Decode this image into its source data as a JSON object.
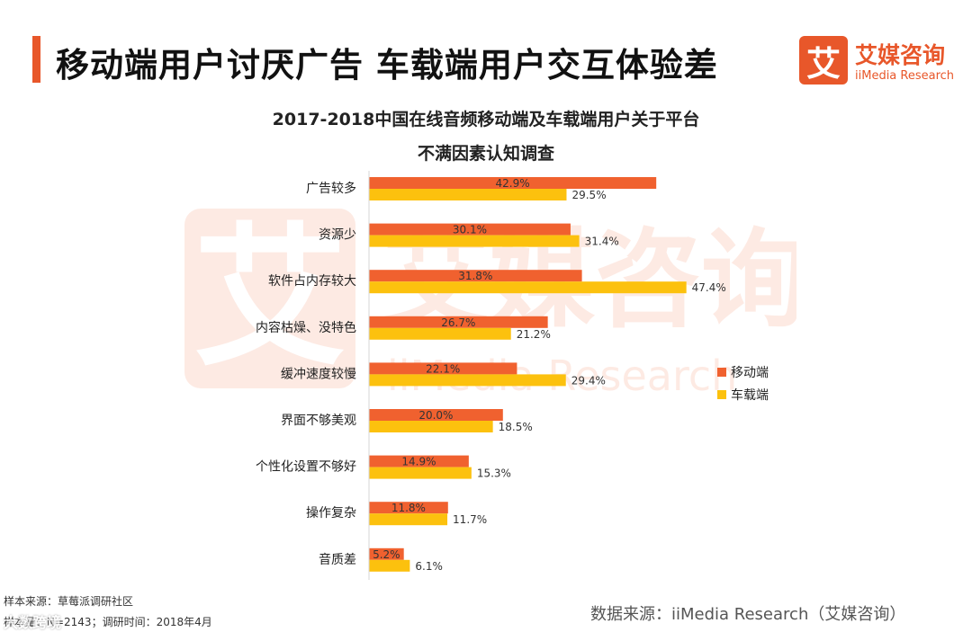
{
  "header": {
    "title": "移动端用户讨厌广告 车载端用户交互体验差",
    "accent_color": "#e8572a"
  },
  "logo": {
    "mark": "艾",
    "name": "艾媒咨询",
    "subtitle": "iiMedia Research",
    "color": "#e8572a"
  },
  "watermark": {
    "glyph": "艾",
    "name": "艾媒咨询",
    "subtitle": "iiMedia Research"
  },
  "chart_data": {
    "type": "bar",
    "orientation": "horizontal",
    "title": "2017-2018中国在线音频移动端及车载端用户关于平台不满因素认知调查",
    "title_lines": [
      "2017-2018中国在线音频移动端及车载端用户关于平台",
      "不满因素认知调查"
    ],
    "categories": [
      "广告较多",
      "资源少",
      "软件占内存较大",
      "内容枯燥、没特色",
      "缓冲速度较慢",
      "界面不够美观",
      "个性化设置不够好",
      "操作复杂",
      "音质差"
    ],
    "series": [
      {
        "name": "移动端",
        "color": "#f0612f",
        "values": [
          42.9,
          30.1,
          31.8,
          26.7,
          22.1,
          20.0,
          14.9,
          11.8,
          5.2
        ]
      },
      {
        "name": "车载端",
        "color": "#fcc10e",
        "values": [
          29.5,
          31.4,
          47.4,
          21.2,
          29.4,
          18.5,
          15.3,
          11.7,
          6.1
        ]
      }
    ],
    "value_suffix": "%",
    "xlim": [
      0,
      50
    ],
    "xlabel": "",
    "ylabel": "",
    "grid": false,
    "legend_position": "right"
  },
  "footer": {
    "sample_source": "样本来源：草莓派调研社区",
    "sample_size": "样本量：N=2143；调研时间：2018年4月",
    "data_source": "数据来源：iiMedia Research（艾媒咨询）",
    "corner_mark": "大数跨境"
  }
}
